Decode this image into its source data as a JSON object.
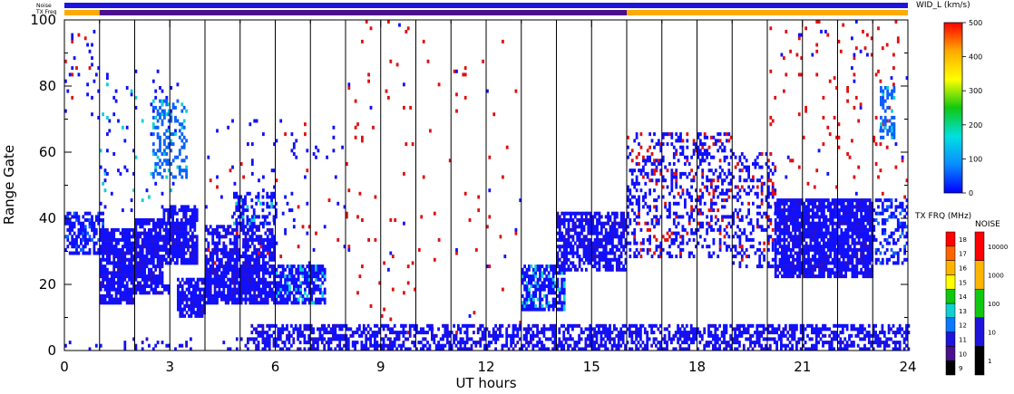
{
  "chart_data": {
    "type": "heatmap",
    "xlabel": "UT hours",
    "ylabel": "Range Gate",
    "xlim": [
      0,
      24
    ],
    "ylim": [
      0,
      100
    ],
    "x_ticks": [
      "0",
      "3",
      "6",
      "9",
      "12",
      "15",
      "18",
      "21",
      "24"
    ],
    "y_ticks": [
      "0",
      "20",
      "40",
      "60",
      "80",
      "100"
    ],
    "scan_boundaries_ut": [
      1,
      2,
      3,
      4,
      5,
      6,
      7,
      8,
      9,
      10,
      11,
      12,
      13,
      14,
      15,
      16,
      17,
      18,
      19,
      20,
      21,
      22,
      23
    ],
    "top_strips": {
      "noise_label": "Noise",
      "txfreq_label": "TX Freq",
      "txfreq_segments": [
        {
          "start": 0,
          "end": 1,
          "band": "15"
        },
        {
          "start": 1,
          "end": 16,
          "band": "11"
        },
        {
          "start": 16,
          "end": 24,
          "band": "15"
        }
      ]
    },
    "echo_regions": [
      {
        "x": [
          0,
          1.1
        ],
        "y": [
          29,
          42
        ],
        "density": 0.65,
        "color": "#1010ff",
        "alt": "#0a60ff"
      },
      {
        "x": [
          0,
          1.0
        ],
        "y": [
          70,
          100
        ],
        "density": 0.05,
        "color": "#1010ff",
        "alt": "#e01010"
      },
      {
        "x": [
          1.0,
          2.0
        ],
        "y": [
          14,
          37
        ],
        "density": 0.85,
        "color": "#1010ff",
        "alt": "#2a0fc8"
      },
      {
        "x": [
          1.0,
          3.2
        ],
        "y": [
          42,
          85
        ],
        "density": 0.05,
        "color": "#1010ff",
        "alt": "#10d0d0"
      },
      {
        "x": [
          2.0,
          2.8
        ],
        "y": [
          20,
          40
        ],
        "density": 0.85,
        "color": "#1010ff",
        "alt": "#2a0fc8"
      },
      {
        "x": [
          2.8,
          3.8
        ],
        "y": [
          26,
          44
        ],
        "density": 0.8,
        "color": "#1010ff",
        "alt": "#2a0fc8"
      },
      {
        "x": [
          2.5,
          3.5
        ],
        "y": [
          52,
          76
        ],
        "density": 0.35,
        "color": "#0a60ff",
        "alt": "#10d0d0"
      },
      {
        "x": [
          2.0,
          3.0
        ],
        "y": [
          17,
          20
        ],
        "density": 0.8,
        "color": "#1010ff",
        "alt": "#2a0fc8"
      },
      {
        "x": [
          3.2,
          4.0
        ],
        "y": [
          10,
          22
        ],
        "density": 0.8,
        "color": "#1010ff",
        "alt": "#2a0fc8"
      },
      {
        "x": [
          4.0,
          6.0
        ],
        "y": [
          14,
          26
        ],
        "density": 0.85,
        "color": "#1010ff",
        "alt": "#2a0fc8"
      },
      {
        "x": [
          4.0,
          6.0
        ],
        "y": [
          24,
          38
        ],
        "density": 0.65,
        "color": "#1010ff",
        "alt": "#2a0fc8"
      },
      {
        "x": [
          4.8,
          6.0
        ],
        "y": [
          38,
          48
        ],
        "density": 0.4,
        "color": "#1010ff",
        "alt": "#10d0d0"
      },
      {
        "x": [
          6.0,
          7.4
        ],
        "y": [
          14,
          26
        ],
        "density": 0.75,
        "color": "#1010ff",
        "alt": "#10d0d0"
      },
      {
        "x": [
          4.0,
          8.0
        ],
        "y": [
          26,
          70
        ],
        "density": 0.03,
        "color": "#1010ff",
        "alt": "#e01010"
      },
      {
        "x": [
          8.0,
          13.0
        ],
        "y": [
          5,
          100
        ],
        "density": 0.015,
        "color": "#e01010",
        "alt": "#1010ff"
      },
      {
        "x": [
          13.0,
          14.2
        ],
        "y": [
          12,
          26
        ],
        "density": 0.75,
        "color": "#1010ff",
        "alt": "#10d0d0"
      },
      {
        "x": [
          14.0,
          16.0
        ],
        "y": [
          24,
          42
        ],
        "density": 0.7,
        "color": "#1010ff",
        "alt": "#2a0fc8"
      },
      {
        "x": [
          16.0,
          19.0
        ],
        "y": [
          28,
          66
        ],
        "density": 0.3,
        "color": "#1010ff",
        "alt": "#e01010"
      },
      {
        "x": [
          19.0,
          20.2
        ],
        "y": [
          25,
          60
        ],
        "density": 0.3,
        "color": "#1010ff",
        "alt": "#e01010"
      },
      {
        "x": [
          20.2,
          23.0
        ],
        "y": [
          22,
          46
        ],
        "density": 0.85,
        "color": "#1010ff",
        "alt": "#2a0fc8"
      },
      {
        "x": [
          20.0,
          24.0
        ],
        "y": [
          46,
          100
        ],
        "density": 0.04,
        "color": "#e01010",
        "alt": "#1010ff"
      },
      {
        "x": [
          23.0,
          24.0
        ],
        "y": [
          26,
          46
        ],
        "density": 0.45,
        "color": "#1010ff",
        "alt": "#0a60ff"
      },
      {
        "x": [
          23.2,
          23.6
        ],
        "y": [
          64,
          80
        ],
        "density": 0.5,
        "color": "#0a60ff",
        "alt": "#10d0d0"
      },
      {
        "x": [
          5.3,
          24.0
        ],
        "y": [
          0,
          8
        ],
        "density": 0.55,
        "color": "#1010ff",
        "alt": "#2a0fc8"
      },
      {
        "x": [
          0.0,
          5.3
        ],
        "y": [
          0,
          4
        ],
        "density": 0.15,
        "color": "#1010ff",
        "alt": "#2a0fc8"
      }
    ],
    "colorbars": [
      {
        "title": "WID_L (km/s)",
        "ticks": [
          "0",
          "100",
          "200",
          "300",
          "400",
          "500"
        ],
        "stops": [
          "#0000ff",
          "#0a8cff",
          "#00e0e0",
          "#10c810",
          "#ffff00",
          "#ffaa00",
          "#ff0000"
        ]
      },
      {
        "title": "TX FRQ (MHz)",
        "ticks": [
          "9",
          "10",
          "11",
          "12",
          "13",
          "14",
          "15",
          "16",
          "17",
          "18"
        ],
        "colors": [
          "#000000",
          "#4b0f8c",
          "#1e14dc",
          "#0a78ff",
          "#10d0d0",
          "#10c810",
          "#ffff00",
          "#ffb400",
          "#ff6400",
          "#ff0000"
        ]
      },
      {
        "title": "NOISE",
        "ticks": [
          "1",
          "10",
          "100",
          "1000",
          "10000"
        ],
        "colors": [
          "#000000",
          "#1e14dc",
          "#10c810",
          "#ffb400",
          "#ff0000"
        ]
      }
    ]
  }
}
